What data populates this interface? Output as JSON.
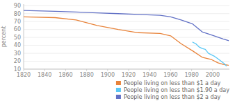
{
  "chart_data": {
    "type": "line",
    "ylabel": "percent",
    "xlim": [
      1820,
      2016
    ],
    "ylim": [
      10,
      92
    ],
    "xticks": [
      1820,
      1840,
      1860,
      1880,
      1900,
      1920,
      1940,
      1960,
      1980,
      2000
    ],
    "yticks": [
      10,
      20,
      30,
      40,
      50,
      60,
      70,
      80,
      90
    ],
    "grid": true,
    "legend": "lower right",
    "series": [
      {
        "name": "People living on less than $1 a day",
        "color": "#e8833a",
        "x": [
          1820,
          1850,
          1870,
          1890,
          1910,
          1929,
          1950,
          1960,
          1970,
          1981,
          1990,
          1999,
          2005,
          2010,
          2015
        ],
        "values": [
          76,
          75,
          72,
          65,
          60,
          56,
          55,
          52,
          42,
          33,
          25,
          22,
          18,
          16,
          15
        ]
      },
      {
        "name": "People living on less than $1.90 a day",
        "color": "#5bc8f5",
        "x": [
          1981,
          1984,
          1987,
          1990,
          1993,
          1996,
          1999,
          2002,
          2005,
          2008,
          2011,
          2013
        ],
        "values": [
          44,
          42,
          38,
          36,
          35,
          30,
          28,
          26,
          23,
          20,
          17,
          14
        ]
      },
      {
        "name": "People living on less than $2 a day",
        "color": "#6170c5",
        "x": [
          1820,
          1850,
          1870,
          1890,
          1910,
          1929,
          1950,
          1960,
          1970,
          1981,
          1990,
          1999,
          2010,
          2015
        ],
        "values": [
          84,
          83,
          82,
          81,
          80,
          79,
          78,
          76,
          72,
          67,
          57,
          53,
          48,
          46
        ]
      }
    ]
  }
}
